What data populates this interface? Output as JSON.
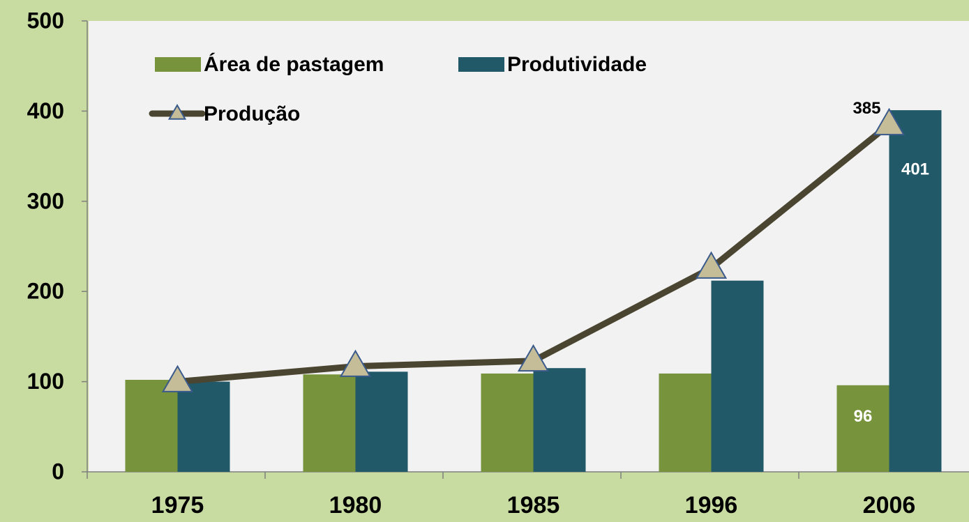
{
  "chart_data": {
    "type": "bar_line",
    "categories": [
      "1975",
      "1980",
      "1985",
      "1996",
      "2006"
    ],
    "series": [
      {
        "name": "Área de pastagem",
        "type": "bar",
        "color": "#77933c",
        "values": [
          102,
          108,
          109,
          109,
          96
        ],
        "data_labels": [
          false,
          false,
          false,
          false,
          true
        ]
      },
      {
        "name": "Produtividade",
        "type": "bar",
        "color": "#215968",
        "values": [
          100,
          111,
          115,
          212,
          401
        ],
        "data_labels": [
          false,
          false,
          false,
          false,
          true
        ]
      },
      {
        "name": "Produção",
        "type": "line",
        "color": "#4a4530",
        "marker_color": "#c4bd97",
        "values": [
          100,
          117,
          123,
          226,
          385
        ],
        "data_labels": [
          false,
          false,
          false,
          false,
          true
        ]
      }
    ],
    "ylim": [
      0,
      500
    ],
    "yticks": [
      0,
      100,
      200,
      300,
      400,
      500
    ],
    "grid": false,
    "legend": "top-left"
  }
}
